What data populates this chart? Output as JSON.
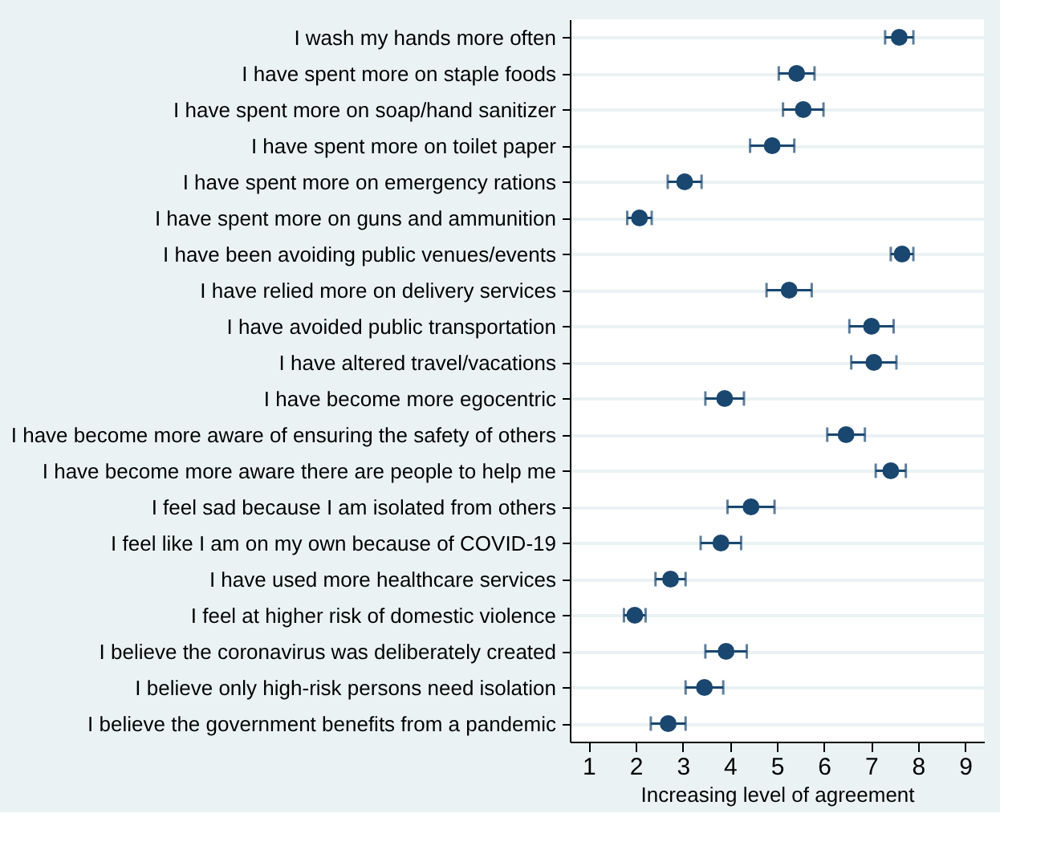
{
  "chart_data": {
    "type": "scatter",
    "orientation": "horizontal",
    "xlabel": "Increasing level of agreement",
    "categories": [
      "I wash my hands more often",
      "I have spent more on staple foods",
      "I have spent more on soap/hand sanitizer",
      "I have spent more on toilet paper",
      "I have spent more on emergency rations",
      "I have spent more on guns and ammunition",
      "I have been avoiding public venues/events",
      "I have relied more on delivery services",
      "I have avoided public transportation",
      "I have altered travel/vacations",
      "I have become more egocentric",
      "I have become more aware of ensuring the safety of others",
      "I have become more aware there are people to help me",
      "I feel sad because I am isolated from others",
      "I feel like I am on my own because of COVID-19",
      "I have used more healthcare services",
      "I feel at higher risk of domestic violence",
      "I believe the coronavirus was deliberately created",
      "I believe only high-risk persons need isolation",
      "I believe the government benefits from a pandemic"
    ],
    "series": [
      {
        "color": "#1a476f",
        "values": [
          7.6,
          5.42,
          5.56,
          4.9,
          3.04,
          2.08,
          7.66,
          5.26,
          7.01,
          7.06,
          3.89,
          6.47,
          7.42,
          4.45,
          3.81,
          2.74,
          1.98,
          3.92,
          3.46,
          2.69
        ],
        "errors": [
          0.3,
          0.38,
          0.43,
          0.47,
          0.36,
          0.26,
          0.24,
          0.48,
          0.47,
          0.48,
          0.41,
          0.4,
          0.32,
          0.5,
          0.43,
          0.32,
          0.23,
          0.44,
          0.4,
          0.37
        ]
      }
    ],
    "xlim": [
      0.6,
      9.4
    ],
    "xticks": [
      1,
      2,
      3,
      4,
      5,
      6,
      7,
      8,
      9
    ],
    "grid": "y",
    "marker": "circle"
  }
}
